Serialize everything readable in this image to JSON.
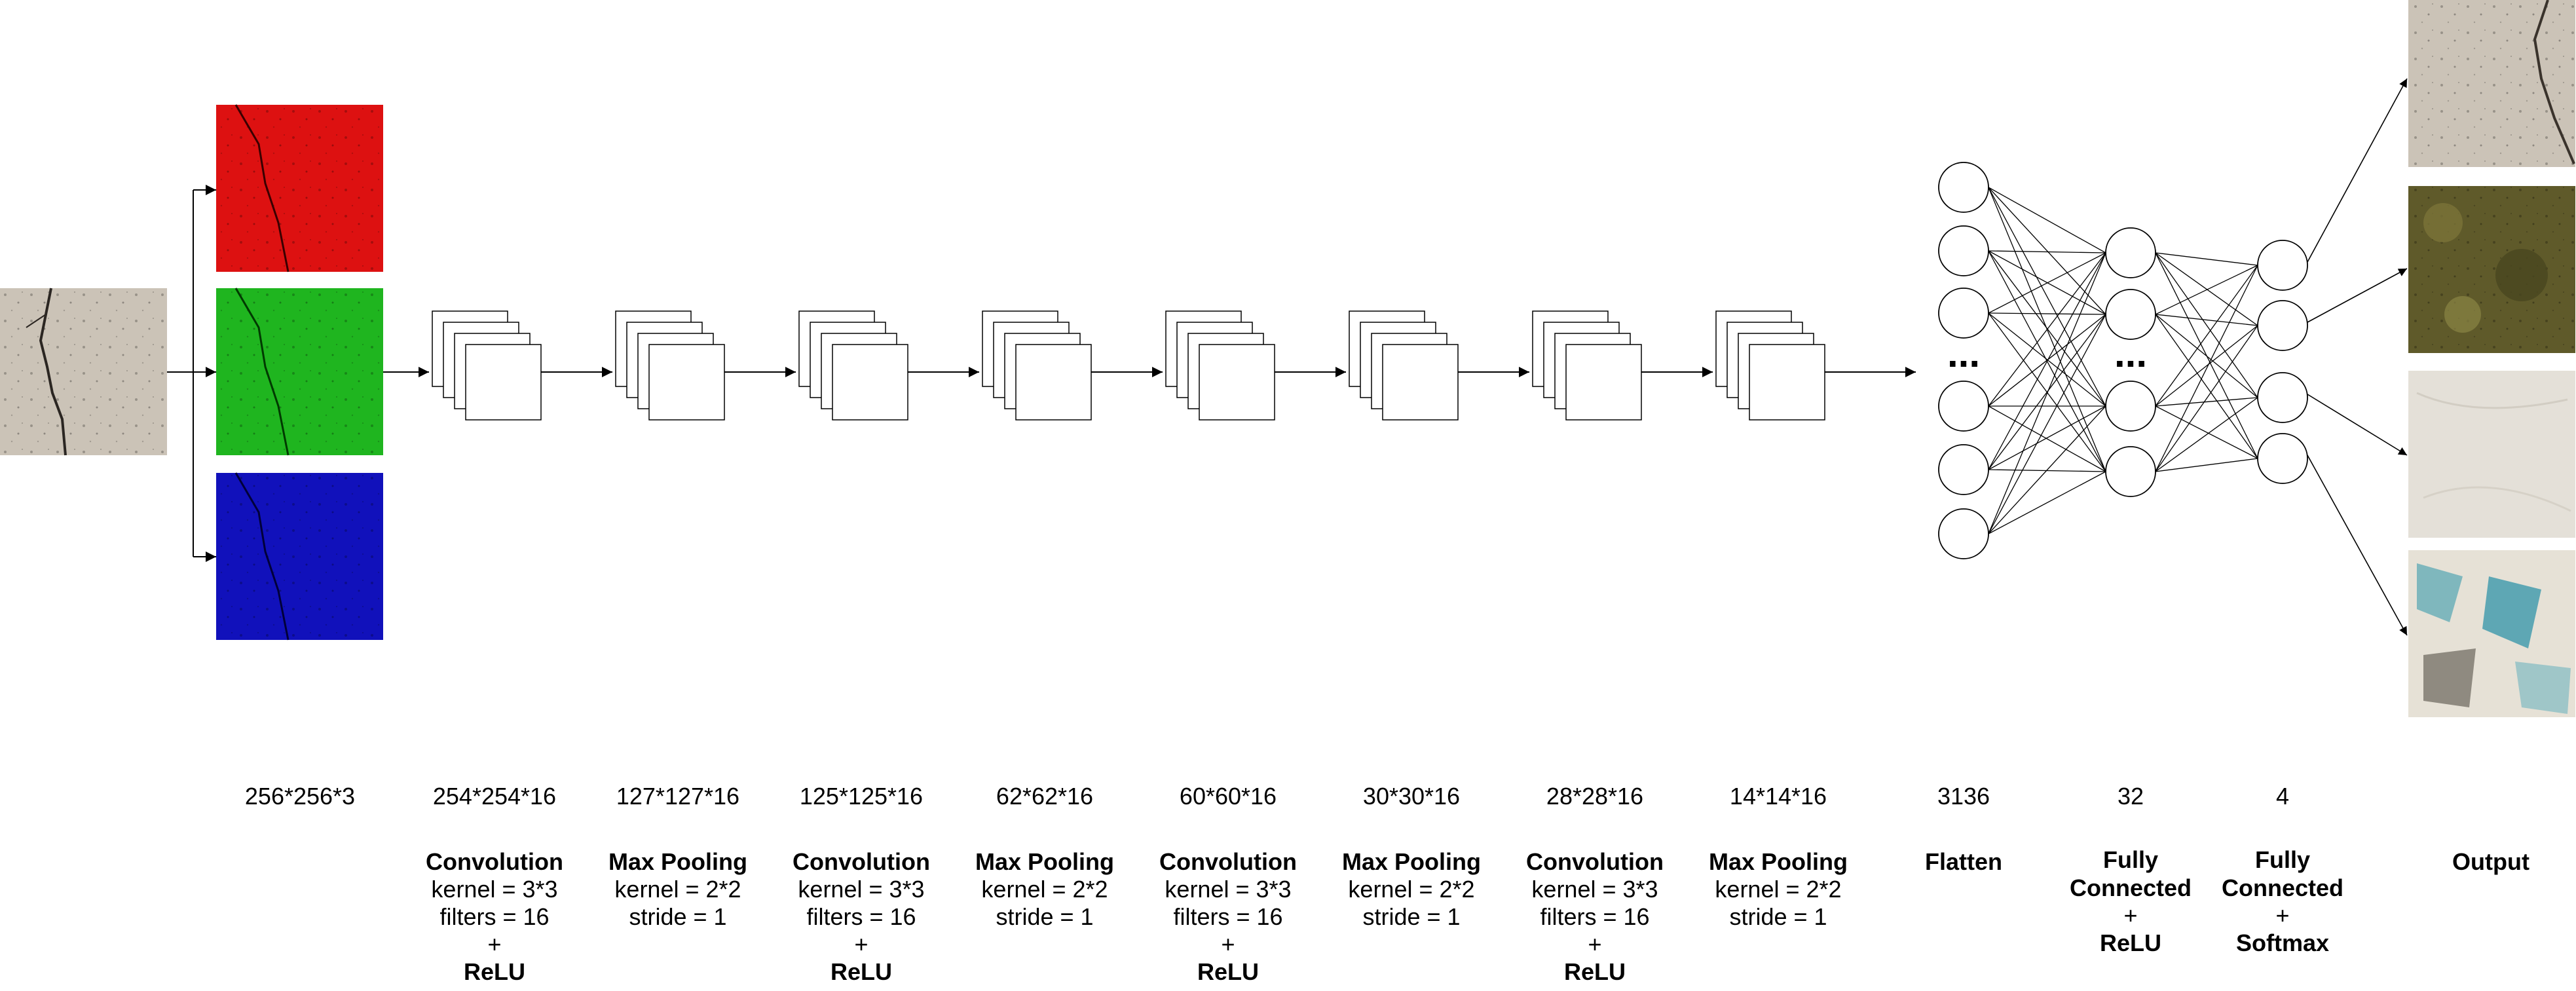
{
  "colors": {
    "red_channel": "#dd1111",
    "green_channel": "#1fb51f",
    "blue_channel": "#1111bb",
    "concrete": "#cbc3b7",
    "moss": "#5f5a2a",
    "plain_wall": "#e4e0d8",
    "peeling": "#7fb7bd"
  },
  "input": {
    "dims": "256*256*3",
    "image": "cracked-concrete-texture"
  },
  "channels": [
    "red-channel-image",
    "green-channel-image",
    "blue-channel-image"
  ],
  "layers": [
    {
      "dims": "254*254*16",
      "title": "Convolution",
      "params": [
        "kernel = 3*3",
        "filters = 16",
        "+"
      ],
      "activation": "ReLU"
    },
    {
      "dims": "127*127*16",
      "title": "Max Pooling",
      "params": [
        "kernel = 2*2",
        "stride = 1"
      ],
      "activation": ""
    },
    {
      "dims": "125*125*16",
      "title": "Convolution",
      "params": [
        "kernel = 3*3",
        "filters = 16",
        "+"
      ],
      "activation": "ReLU"
    },
    {
      "dims": "62*62*16",
      "title": "Max Pooling",
      "params": [
        "kernel = 2*2",
        "stride = 1"
      ],
      "activation": ""
    },
    {
      "dims": "60*60*16",
      "title": "Convolution",
      "params": [
        "kernel = 3*3",
        "filters = 16",
        "+"
      ],
      "activation": "ReLU"
    },
    {
      "dims": "30*30*16",
      "title": "Max Pooling",
      "params": [
        "kernel = 2*2",
        "stride = 1"
      ],
      "activation": ""
    },
    {
      "dims": "28*28*16",
      "title": "Convolution",
      "params": [
        "kernel = 3*3",
        "filters = 16",
        "+"
      ],
      "activation": "ReLU"
    },
    {
      "dims": "14*14*16",
      "title": "Max Pooling",
      "params": [
        "kernel = 2*2",
        "stride = 1"
      ],
      "activation": ""
    }
  ],
  "flatten": {
    "dims": "3136",
    "title": "Flatten",
    "ellipsis": "..."
  },
  "dense1": {
    "dims": "32",
    "title_lines": [
      "Fully",
      "Connected"
    ],
    "plus": "+",
    "activation": "ReLU",
    "ellipsis": "..."
  },
  "dense2": {
    "dims": "4",
    "title_lines": [
      "Fully",
      "Connected"
    ],
    "plus": "+",
    "activation": "Softmax"
  },
  "output": {
    "title": "Output",
    "images": [
      "cracked-concrete-texture",
      "mossy-surface-texture",
      "plain-wall-texture",
      "peeling-paint-texture"
    ]
  }
}
